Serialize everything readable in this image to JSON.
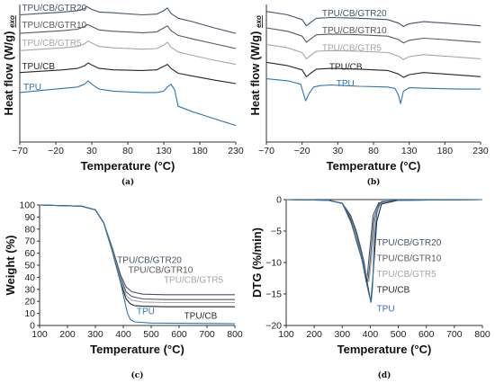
{
  "chart_data": [
    {
      "id": "a",
      "type": "line",
      "panel_label": "(a)",
      "xlabel": "Temperature (°C)",
      "ylabel": "Heat flow (W/g)",
      "ylabel_suffix": "exo",
      "xlim": [
        -70,
        230
      ],
      "xticks": [
        -70,
        -20,
        30,
        80,
        130,
        180,
        230
      ],
      "yticks": [],
      "grid": false,
      "legend": "inline",
      "series": [
        {
          "name": "TPU/CB/GTR20",
          "color": "#44546a",
          "label_at": [
            -67,
            0.955
          ],
          "x": [
            -70,
            -40,
            -10,
            10,
            20,
            23,
            30,
            40,
            60,
            100,
            120,
            130,
            135,
            140,
            150,
            170,
            200,
            230
          ],
          "y": [
            0.925,
            0.935,
            0.945,
            0.955,
            0.97,
            0.985,
            0.965,
            0.945,
            0.94,
            0.925,
            0.93,
            0.955,
            0.975,
            0.935,
            0.9,
            0.875,
            0.83,
            0.79
          ]
        },
        {
          "name": "TPU/CB/GTR10",
          "color": "#595959",
          "label_at": [
            -67,
            0.83
          ],
          "x": [
            -70,
            -40,
            -10,
            10,
            20,
            24,
            30,
            40,
            60,
            100,
            120,
            130,
            135,
            140,
            150,
            170,
            200,
            230
          ],
          "y": [
            0.79,
            0.8,
            0.81,
            0.82,
            0.84,
            0.855,
            0.84,
            0.815,
            0.805,
            0.795,
            0.8,
            0.83,
            0.845,
            0.81,
            0.775,
            0.75,
            0.715,
            0.68
          ]
        },
        {
          "name": "TPU/CB/GTR5",
          "color": "#a6a6a6",
          "label_at": [
            -67,
            0.7
          ],
          "x": [
            -70,
            -40,
            -10,
            10,
            20,
            25,
            30,
            40,
            60,
            100,
            120,
            130,
            135,
            140,
            150,
            170,
            200,
            230
          ],
          "y": [
            0.665,
            0.675,
            0.685,
            0.695,
            0.715,
            0.735,
            0.72,
            0.695,
            0.685,
            0.675,
            0.68,
            0.705,
            0.725,
            0.69,
            0.655,
            0.63,
            0.595,
            0.565
          ]
        },
        {
          "name": "TPU/CB",
          "color": "#262626",
          "label_at": [
            -67,
            0.53
          ],
          "x": [
            -70,
            -40,
            -10,
            10,
            20,
            25,
            30,
            40,
            60,
            100,
            120,
            130,
            135,
            140,
            150,
            170,
            200,
            230
          ],
          "y": [
            0.505,
            0.515,
            0.525,
            0.535,
            0.555,
            0.575,
            0.56,
            0.535,
            0.525,
            0.52,
            0.525,
            0.55,
            0.565,
            0.535,
            0.5,
            0.48,
            0.45,
            0.425
          ]
        },
        {
          "name": "TPU",
          "color": "#2e75b6",
          "label_at": [
            -65,
            0.38
          ],
          "x": [
            -70,
            -40,
            -10,
            10,
            20,
            25,
            30,
            40,
            60,
            100,
            120,
            130,
            135,
            140,
            145,
            150,
            170,
            200,
            230
          ],
          "y": [
            0.36,
            0.375,
            0.39,
            0.4,
            0.42,
            0.445,
            0.42,
            0.385,
            0.37,
            0.36,
            0.36,
            0.37,
            0.4,
            0.42,
            0.38,
            0.26,
            0.22,
            0.17,
            0.12
          ]
        }
      ]
    },
    {
      "id": "b",
      "type": "line",
      "panel_label": "(b)",
      "xlabel": "Temperature (°C)",
      "ylabel": "Heat flow (W/g)",
      "ylabel_suffix": "exo",
      "xlim": [
        -70,
        230
      ],
      "xticks": [
        -70,
        -20,
        30,
        80,
        130,
        180,
        230
      ],
      "yticks": [],
      "grid": false,
      "legend": "inline",
      "series": [
        {
          "name": "TPU/CB/GTR20",
          "color": "#44546a",
          "label_at": [
            8,
            0.915
          ],
          "x": [
            -70,
            -40,
            -20,
            -14,
            -8,
            0,
            20,
            60,
            100,
            115,
            122,
            130,
            150,
            180,
            230
          ],
          "y": [
            0.95,
            0.925,
            0.89,
            0.845,
            0.87,
            0.9,
            0.905,
            0.9,
            0.89,
            0.865,
            0.84,
            0.86,
            0.875,
            0.865,
            0.845
          ]
        },
        {
          "name": "TPU/CB/GTR10",
          "color": "#595959",
          "label_at": [
            8,
            0.79
          ],
          "x": [
            -70,
            -40,
            -20,
            -14,
            -8,
            0,
            20,
            60,
            100,
            115,
            122,
            130,
            150,
            180,
            230
          ],
          "y": [
            0.83,
            0.805,
            0.77,
            0.725,
            0.75,
            0.78,
            0.785,
            0.78,
            0.77,
            0.745,
            0.72,
            0.74,
            0.755,
            0.745,
            0.725
          ]
        },
        {
          "name": "TPU/CB/GTR5",
          "color": "#a6a6a6",
          "label_at": [
            8,
            0.665
          ],
          "x": [
            -70,
            -40,
            -20,
            -14,
            -8,
            0,
            20,
            60,
            100,
            115,
            122,
            130,
            150,
            180,
            230
          ],
          "y": [
            0.71,
            0.685,
            0.65,
            0.605,
            0.63,
            0.66,
            0.665,
            0.66,
            0.65,
            0.625,
            0.6,
            0.62,
            0.635,
            0.625,
            0.605
          ]
        },
        {
          "name": "TPU/CB",
          "color": "#262626",
          "label_at": [
            18,
            0.525
          ],
          "x": [
            -70,
            -40,
            -20,
            -14,
            -8,
            0,
            20,
            60,
            100,
            115,
            122,
            130,
            150,
            180,
            230
          ],
          "y": [
            0.58,
            0.555,
            0.525,
            0.475,
            0.5,
            0.53,
            0.535,
            0.53,
            0.52,
            0.495,
            0.47,
            0.49,
            0.505,
            0.495,
            0.475
          ]
        },
        {
          "name": "TPU",
          "color": "#2e75b6",
          "label_at": [
            28,
            0.405
          ],
          "x": [
            -70,
            -40,
            -22,
            -15,
            -10,
            -4,
            5,
            20,
            60,
            100,
            110,
            115,
            118,
            122,
            130,
            160,
            200,
            230
          ],
          "y": [
            0.46,
            0.445,
            0.42,
            0.3,
            0.355,
            0.4,
            0.41,
            0.415,
            0.405,
            0.4,
            0.39,
            0.34,
            0.28,
            0.37,
            0.395,
            0.39,
            0.385,
            0.385
          ]
        }
      ]
    },
    {
      "id": "c",
      "type": "line",
      "panel_label": "(c)",
      "xlabel": "Temperature (°C)",
      "ylabel": "Weight (%)",
      "xlim": [
        100,
        800
      ],
      "ylim": [
        0,
        100
      ],
      "xticks": [
        100,
        200,
        300,
        400,
        500,
        600,
        700,
        800
      ],
      "yticks": [
        0,
        10,
        20,
        30,
        40,
        50,
        60,
        70,
        80,
        90,
        100
      ],
      "grid": false,
      "legend": "inline",
      "series": [
        {
          "name": "TPU/CB/GTR20",
          "color": "#44546a",
          "label_at": [
            378,
            52
          ],
          "x": [
            100,
            250,
            300,
            330,
            360,
            390,
            410,
            430,
            470,
            550,
            650,
            800
          ],
          "y": [
            100,
            99,
            96,
            85,
            65,
            42,
            32,
            28,
            26,
            25.5,
            25.5,
            25.5
          ]
        },
        {
          "name": "TPU/CB/GTR10",
          "color": "#595959",
          "label_at": [
            418,
            43.5
          ],
          "x": [
            100,
            250,
            300,
            330,
            360,
            390,
            410,
            430,
            470,
            550,
            650,
            800
          ],
          "y": [
            100,
            99,
            96,
            85,
            64,
            40,
            28,
            24,
            22,
            21.5,
            21.5,
            21.5
          ]
        },
        {
          "name": "TPU/CB/GTR5",
          "color": "#a6a6a6",
          "label_at": [
            545,
            35.5
          ],
          "x": [
            100,
            250,
            300,
            330,
            360,
            390,
            410,
            430,
            470,
            550,
            650,
            800
          ],
          "y": [
            100,
            99,
            96,
            85,
            63,
            38,
            25,
            21,
            19.5,
            19,
            19,
            19
          ]
        },
        {
          "name": "TPU/CB",
          "color": "#262626",
          "label_at": [
            618,
            5.5
          ],
          "x": [
            100,
            250,
            300,
            330,
            360,
            390,
            410,
            425,
            440,
            470,
            550,
            650,
            800
          ],
          "y": [
            100,
            99,
            96,
            85,
            62,
            36,
            22,
            18,
            16.5,
            16,
            15.5,
            15.5,
            15.5
          ]
        },
        {
          "name": "TPU",
          "color": "#2e75b6",
          "label_at": [
            448,
            9.5
          ],
          "x": [
            100,
            250,
            300,
            330,
            360,
            390,
            405,
            415,
            425,
            440,
            500,
            800
          ],
          "y": [
            100,
            99,
            96,
            85,
            62,
            36,
            20,
            10,
            5,
            3,
            2,
            1.5
          ]
        }
      ]
    },
    {
      "id": "d",
      "type": "line",
      "panel_label": "(d)",
      "xlabel": "Temperature (°C)",
      "ylabel": "DTG (%/min)",
      "xlim": [
        100,
        800
      ],
      "ylim": [
        -20,
        0
      ],
      "xticks": [
        100,
        200,
        300,
        400,
        500,
        600,
        700,
        800
      ],
      "yticks": [
        -20,
        -15,
        -10,
        -5,
        0
      ],
      "grid": false,
      "legend": "inline",
      "series": [
        {
          "name": "TPU/CB/GTR20",
          "color": "#44546a",
          "label_at": [
            423,
            -7.3
          ],
          "x": [
            100,
            250,
            300,
            330,
            350,
            365,
            378,
            388,
            396,
            410,
            430,
            500,
            800
          ],
          "y": [
            0,
            -0.1,
            -0.6,
            -2.5,
            -5,
            -7.5,
            -10,
            -12.8,
            -9,
            -2.5,
            -0.5,
            -0.1,
            0
          ]
        },
        {
          "name": "TPU/CB/GTR10",
          "color": "#595959",
          "label_at": [
            423,
            -9.8
          ],
          "x": [
            100,
            250,
            300,
            330,
            350,
            365,
            380,
            392,
            400,
            413,
            432,
            500,
            800
          ],
          "y": [
            0,
            -0.1,
            -0.6,
            -2.8,
            -5.5,
            -8,
            -11,
            -13,
            -9.5,
            -3,
            -0.6,
            -0.1,
            0
          ]
        },
        {
          "name": "TPU/CB/GTR5",
          "color": "#a6a6a6",
          "label_at": [
            423,
            -12.3
          ],
          "x": [
            100,
            250,
            300,
            330,
            350,
            365,
            382,
            395,
            403,
            417,
            436,
            500,
            800
          ],
          "y": [
            0,
            -0.1,
            -0.6,
            -3,
            -6,
            -8.5,
            -11.5,
            -13,
            -10,
            -3,
            -0.6,
            -0.1,
            0
          ]
        },
        {
          "name": "TPU/CB",
          "color": "#262626",
          "label_at": [
            423,
            -14.8
          ],
          "x": [
            100,
            250,
            300,
            330,
            350,
            370,
            388,
            402,
            410,
            423,
            440,
            500,
            800
          ],
          "y": [
            0,
            -0.1,
            -0.6,
            -3.2,
            -6.5,
            -9.5,
            -13,
            -16.3,
            -12,
            -3.5,
            -0.7,
            -0.1,
            0
          ]
        },
        {
          "name": "TPU",
          "color": "#2e75b6",
          "label_at": [
            423,
            -17.8
          ],
          "x": [
            100,
            250,
            300,
            330,
            355,
            370,
            385,
            395,
            403,
            408,
            415,
            425,
            440,
            500,
            800
          ],
          "y": [
            0,
            -0.1,
            -0.6,
            -3.5,
            -7,
            -9.5,
            -13,
            -15,
            -16.3,
            -14,
            -6,
            -1.5,
            -0.3,
            -0.1,
            0
          ]
        }
      ]
    }
  ]
}
